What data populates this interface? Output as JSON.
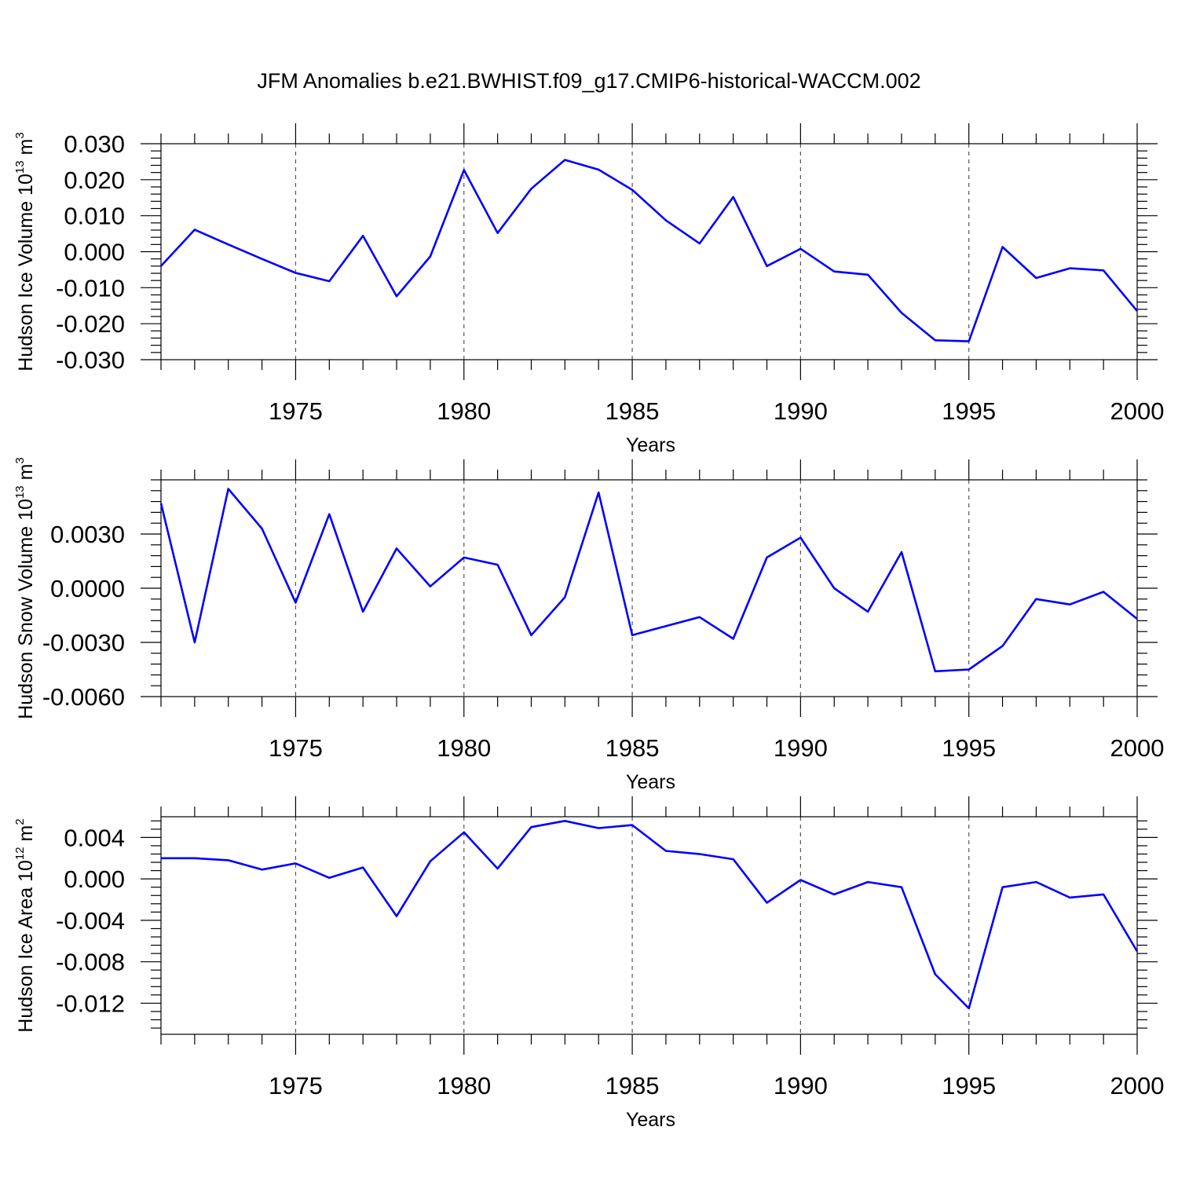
{
  "title": "JFM Anomalies b.e21.BWHIST.f09_g17.CMIP6-historical-WACCM.002",
  "chart_data": [
    {
      "type": "line",
      "name": "ice-volume",
      "ylabel": "Hudson Ice Volume 10",
      "ylabel_exp": "13",
      "ylabel_unit": " m",
      "ylabel_unit_exp": "3",
      "xlabel": "Years",
      "xlim": [
        1971,
        2000
      ],
      "ylim": [
        -0.03,
        0.03
      ],
      "xticks": [
        "1975",
        "1980",
        "1985",
        "1990",
        "1995",
        "2000"
      ],
      "xtick_values": [
        1975,
        1980,
        1985,
        1990,
        1995,
        2000
      ],
      "yticks": [
        "0.030",
        "0.020",
        "0.010",
        "0.000",
        "-0.010",
        "-0.020",
        "-0.030"
      ],
      "ytick_values": [
        0.03,
        0.02,
        0.01,
        0.0,
        -0.01,
        -0.02,
        -0.03
      ],
      "grid": "dashed vertical at major x ticks",
      "color": "#0000ff",
      "x": [
        1971,
        1972,
        1973,
        1974,
        1975,
        1976,
        1977,
        1978,
        1979,
        1980,
        1981,
        1982,
        1983,
        1984,
        1985,
        1986,
        1987,
        1988,
        1989,
        1990,
        1991,
        1992,
        1993,
        1994,
        1995,
        1996,
        1997,
        1998,
        1999,
        2000
      ],
      "values": [
        -0.004,
        0.0061,
        0.002,
        -0.002,
        -0.0059,
        -0.0082,
        0.0044,
        -0.0124,
        -0.0013,
        0.0227,
        0.0052,
        0.0175,
        0.0255,
        0.0228,
        0.0172,
        0.0087,
        0.0023,
        0.0152,
        -0.004,
        0.0008,
        -0.0055,
        -0.0064,
        -0.017,
        -0.0246,
        -0.0249,
        0.0013,
        -0.0073,
        -0.0046,
        -0.0052,
        -0.0165
      ]
    },
    {
      "type": "line",
      "name": "snow-volume",
      "ylabel": "Hudson Snow Volume 10",
      "ylabel_exp": "13",
      "ylabel_unit": " m",
      "ylabel_unit_exp": "3",
      "xlabel": "Years",
      "xlim": [
        1971,
        2000
      ],
      "ylim": [
        -0.006,
        0.006
      ],
      "xticks": [
        "1975",
        "1980",
        "1985",
        "1990",
        "1995",
        "2000"
      ],
      "xtick_values": [
        1975,
        1980,
        1985,
        1990,
        1995,
        2000
      ],
      "yticks": [
        "0.0030",
        "0.0000",
        "-0.0030",
        "-0.0060"
      ],
      "ytick_values": [
        0.003,
        0.0,
        -0.003,
        -0.006
      ],
      "grid": "dashed vertical at major x ticks",
      "color": "#0000ff",
      "x": [
        1971,
        1972,
        1973,
        1974,
        1975,
        1976,
        1977,
        1978,
        1979,
        1980,
        1981,
        1982,
        1983,
        1984,
        1985,
        1986,
        1987,
        1988,
        1989,
        1990,
        1991,
        1992,
        1993,
        1994,
        1995,
        1996,
        1997,
        1998,
        1999,
        2000
      ],
      "values": [
        0.0047,
        -0.003,
        0.0055,
        0.0033,
        -0.0008,
        0.0041,
        -0.0013,
        0.0022,
        0.0001,
        0.0017,
        0.0013,
        -0.0026,
        -0.0005,
        0.0053,
        -0.0026,
        -0.0021,
        -0.0016,
        -0.0028,
        0.0017,
        0.0028,
        0.0,
        -0.0013,
        0.002,
        -0.0046,
        -0.0045,
        -0.0032,
        -0.0006,
        -0.0009,
        -0.0002,
        -0.0017
      ]
    },
    {
      "type": "line",
      "name": "ice-area",
      "ylabel": "Hudson Ice Area 10",
      "ylabel_exp": "12",
      "ylabel_unit": " m",
      "ylabel_unit_exp": "2",
      "xlabel": "Years",
      "xlim": [
        1971,
        2000
      ],
      "ylim": [
        -0.015,
        0.006
      ],
      "xticks": [
        "1975",
        "1980",
        "1985",
        "1990",
        "1995",
        "2000"
      ],
      "xtick_values": [
        1975,
        1980,
        1985,
        1990,
        1995,
        2000
      ],
      "yticks": [
        "0.004",
        "0.000",
        "-0.004",
        "-0.008",
        "-0.012"
      ],
      "ytick_values": [
        0.004,
        0.0,
        -0.004,
        -0.008,
        -0.012
      ],
      "grid": "dashed vertical at major x ticks",
      "color": "#0000ff",
      "x": [
        1971,
        1972,
        1973,
        1974,
        1975,
        1976,
        1977,
        1978,
        1979,
        1980,
        1981,
        1982,
        1983,
        1984,
        1985,
        1986,
        1987,
        1988,
        1989,
        1990,
        1991,
        1992,
        1993,
        1994,
        1995,
        1996,
        1997,
        1998,
        1999,
        2000
      ],
      "values": [
        0.002,
        0.002,
        0.0018,
        0.0009,
        0.0015,
        0.0001,
        0.0011,
        -0.0036,
        0.0017,
        0.0045,
        0.001,
        0.005,
        0.0056,
        0.0049,
        0.0052,
        0.0027,
        0.0024,
        0.0019,
        -0.0023,
        -0.0001,
        -0.0015,
        -0.0003,
        -0.0008,
        -0.0092,
        -0.0125,
        -0.0008,
        -0.0003,
        -0.0018,
        -0.0015,
        -0.007
      ]
    }
  ]
}
